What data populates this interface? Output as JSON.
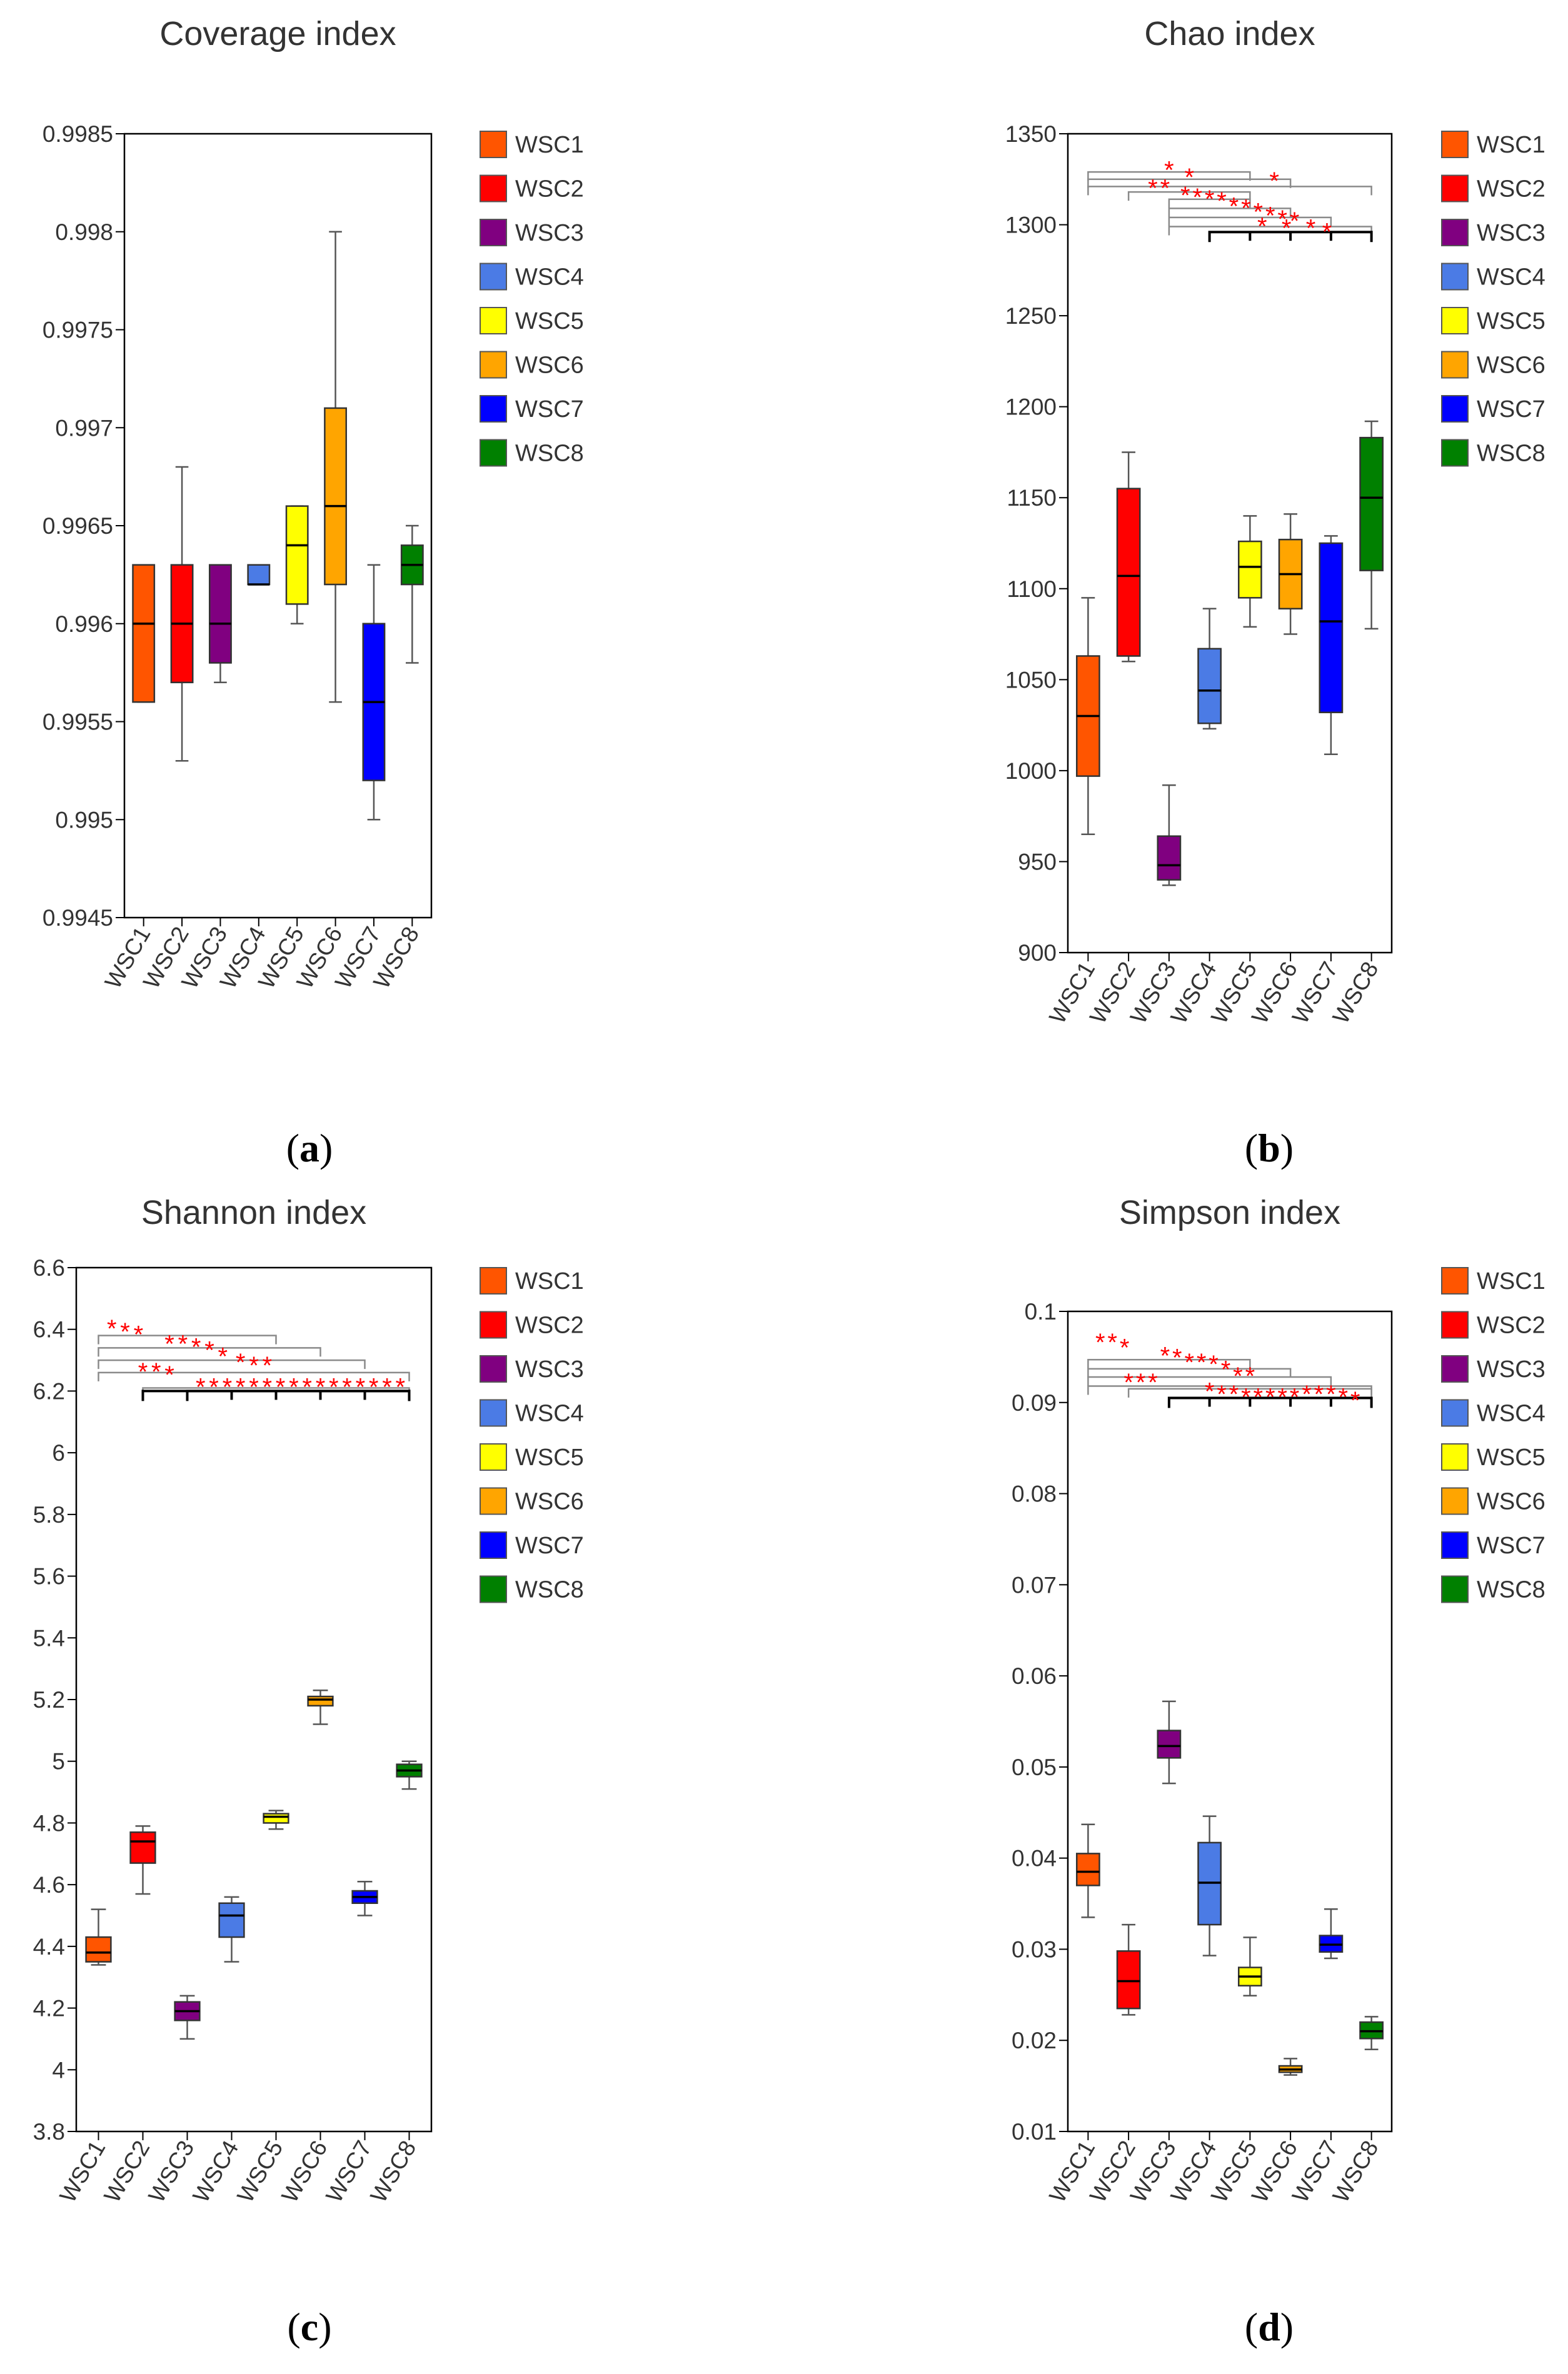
{
  "figure": {
    "panels": [
      {
        "label_prefix": "(",
        "label_letter": "a",
        "label_suffix": ")"
      },
      {
        "label_prefix": "(",
        "label_letter": "b",
        "label_suffix": ")"
      },
      {
        "label_prefix": "(",
        "label_letter": "c",
        "label_suffix": ")"
      },
      {
        "label_prefix": "(",
        "label_letter": "d",
        "label_suffix": ")"
      }
    ]
  },
  "legend": {
    "items": [
      {
        "name": "WSC1",
        "color": "#FF5500"
      },
      {
        "name": "WSC2",
        "color": "#FF0000"
      },
      {
        "name": "WSC3",
        "color": "#800080"
      },
      {
        "name": "WSC4",
        "color": "#4B7BE5"
      },
      {
        "name": "WSC5",
        "color": "#FFFF00"
      },
      {
        "name": "WSC6",
        "color": "#FFA500"
      },
      {
        "name": "WSC7",
        "color": "#0000FF"
      },
      {
        "name": "WSC8",
        "color": "#008000"
      }
    ]
  },
  "annotation_marker": "*",
  "significance_color": "#FF0000",
  "chart_data": [
    {
      "type": "boxplot",
      "title": "Coverage index",
      "xlabel": "",
      "ylabel": "",
      "ylim": [
        0.9945,
        0.9985
      ],
      "yticks": [
        "0.9945",
        "0.995",
        "0.9955",
        "0.996",
        "0.9965",
        "0.997",
        "0.9975",
        "0.998",
        "0.9985"
      ],
      "categories": [
        "WSC1",
        "WSC2",
        "WSC3",
        "WSC4",
        "WSC5",
        "WSC6",
        "WSC7",
        "WSC8"
      ],
      "boxes": [
        {
          "min": 0.9956,
          "q1": 0.9956,
          "median": 0.996,
          "q3": 0.9963,
          "max": 0.9963
        },
        {
          "min": 0.9953,
          "q1": 0.9957,
          "median": 0.996,
          "q3": 0.9963,
          "max": 0.9968
        },
        {
          "min": 0.9957,
          "q1": 0.9958,
          "median": 0.996,
          "q3": 0.9963,
          "max": 0.9963
        },
        {
          "min": 0.9962,
          "q1": 0.9962,
          "median": 0.9962,
          "q3": 0.9963,
          "max": 0.9963
        },
        {
          "min": 0.996,
          "q1": 0.9961,
          "median": 0.9964,
          "q3": 0.9966,
          "max": 0.9966
        },
        {
          "min": 0.9956,
          "q1": 0.9962,
          "median": 0.9966,
          "q3": 0.9971,
          "max": 0.998
        },
        {
          "min": 0.995,
          "q1": 0.9952,
          "median": 0.9956,
          "q3": 0.996,
          "max": 0.9963
        },
        {
          "min": 0.9958,
          "q1": 0.9962,
          "median": 0.9963,
          "q3": 0.9964,
          "max": 0.9965
        }
      ],
      "significance": {
        "gray_brackets": [],
        "black_brackets": [],
        "stars": []
      }
    },
    {
      "type": "boxplot",
      "title": "Chao index",
      "xlabel": "",
      "ylabel": "",
      "ylim": [
        900,
        1350
      ],
      "yticks": [
        "900",
        "950",
        "1000",
        "1050",
        "1100",
        "1150",
        "1200",
        "1250",
        "1300",
        "1350"
      ],
      "categories": [
        "WSC1",
        "WSC2",
        "WSC3",
        "WSC4",
        "WSC5",
        "WSC6",
        "WSC7",
        "WSC8"
      ],
      "boxes": [
        {
          "min": 965,
          "q1": 997,
          "median": 1030,
          "q3": 1063,
          "max": 1095
        },
        {
          "min": 1060,
          "q1": 1063,
          "median": 1107,
          "q3": 1155,
          "max": 1175
        },
        {
          "min": 937,
          "q1": 940,
          "median": 948,
          "q3": 964,
          "max": 992
        },
        {
          "min": 1023,
          "q1": 1026,
          "median": 1044,
          "q3": 1067,
          "max": 1089
        },
        {
          "min": 1079,
          "q1": 1095,
          "median": 1112,
          "q3": 1126,
          "max": 1140
        },
        {
          "min": 1075,
          "q1": 1089,
          "median": 1108,
          "q3": 1127,
          "max": 1141
        },
        {
          "min": 1009,
          "q1": 1032,
          "median": 1082,
          "q3": 1125,
          "max": 1129
        },
        {
          "min": 1078,
          "q1": 1110,
          "median": 1150,
          "q3": 1183,
          "max": 1192
        }
      ],
      "significance": {
        "gray_brackets": [
          {
            "from": 1,
            "to": 5,
            "y": 1329
          },
          {
            "from": 1,
            "to": 6,
            "y": 1325
          },
          {
            "from": 1,
            "to": 8,
            "y": 1321
          },
          {
            "from": 2,
            "to": 5,
            "y": 1318
          },
          {
            "from": 3,
            "to": 5,
            "y": 1314
          },
          {
            "from": 3,
            "to": 6,
            "y": 1309
          },
          {
            "from": 3,
            "to": 7,
            "y": 1304
          },
          {
            "from": 3,
            "to": 8,
            "y": 1299
          }
        ],
        "black_brackets": [
          {
            "from": 4,
            "to": 8,
            "y": 1296
          }
        ],
        "stars": [
          {
            "x": 3.0,
            "y": 1333
          },
          {
            "x": 3.5,
            "y": 1329
          },
          {
            "x": 5.6,
            "y": 1327
          },
          {
            "x": 2.6,
            "y": 1323
          },
          {
            "x": 2.9,
            "y": 1323
          },
          {
            "x": 3.4,
            "y": 1319
          },
          {
            "x": 3.7,
            "y": 1318
          },
          {
            "x": 4.0,
            "y": 1317
          },
          {
            "x": 4.3,
            "y": 1316
          },
          {
            "x": 4.6,
            "y": 1313
          },
          {
            "x": 4.9,
            "y": 1312
          },
          {
            "x": 5.2,
            "y": 1310
          },
          {
            "x": 5.5,
            "y": 1308
          },
          {
            "x": 5.8,
            "y": 1306
          },
          {
            "x": 6.1,
            "y": 1305
          },
          {
            "x": 5.3,
            "y": 1302
          },
          {
            "x": 5.9,
            "y": 1301
          },
          {
            "x": 6.5,
            "y": 1301
          },
          {
            "x": 6.9,
            "y": 1299
          }
        ]
      }
    },
    {
      "type": "boxplot",
      "title": "Shannon index",
      "xlabel": "",
      "ylabel": "",
      "ylim": [
        3.8,
        6.6
      ],
      "yticks": [
        "3.8",
        "4",
        "4.2",
        "4.4",
        "4.6",
        "4.8",
        "5",
        "5.2",
        "5.4",
        "5.6",
        "5.8",
        "6",
        "6.2",
        "6.4",
        "6.6"
      ],
      "categories": [
        "WSC1",
        "WSC2",
        "WSC3",
        "WSC4",
        "WSC5",
        "WSC6",
        "WSC7",
        "WSC8"
      ],
      "boxes": [
        {
          "min": 4.34,
          "q1": 4.35,
          "median": 4.38,
          "q3": 4.43,
          "max": 4.52
        },
        {
          "min": 4.57,
          "q1": 4.67,
          "median": 4.74,
          "q3": 4.77,
          "max": 4.79
        },
        {
          "min": 4.1,
          "q1": 4.16,
          "median": 4.19,
          "q3": 4.22,
          "max": 4.24
        },
        {
          "min": 4.35,
          "q1": 4.43,
          "median": 4.5,
          "q3": 4.54,
          "max": 4.56
        },
        {
          "min": 4.78,
          "q1": 4.8,
          "median": 4.82,
          "q3": 4.83,
          "max": 4.84
        },
        {
          "min": 5.12,
          "q1": 5.18,
          "median": 5.2,
          "q3": 5.21,
          "max": 5.23
        },
        {
          "min": 4.5,
          "q1": 4.54,
          "median": 4.56,
          "q3": 4.58,
          "max": 4.61
        },
        {
          "min": 4.91,
          "q1": 4.95,
          "median": 4.97,
          "q3": 4.99,
          "max": 5.0
        }
      ],
      "significance": {
        "gray_brackets": [
          {
            "from": 1,
            "to": 5,
            "y": 6.38
          },
          {
            "from": 1,
            "to": 6,
            "y": 6.34
          },
          {
            "from": 1,
            "to": 7,
            "y": 6.3
          },
          {
            "from": 1,
            "to": 8,
            "y": 6.26
          },
          {
            "from": 2,
            "to": 8,
            "y": 6.21
          }
        ],
        "black_brackets": [
          {
            "from": 2,
            "to": 8,
            "y": 6.2
          },
          {
            "from": 3,
            "to": 8,
            "y": 6.2
          }
        ],
        "stars": [
          {
            "x": 1.3,
            "y": 6.42
          },
          {
            "x": 1.6,
            "y": 6.41
          },
          {
            "x": 1.9,
            "y": 6.4
          },
          {
            "x": 2.6,
            "y": 6.37
          },
          {
            "x": 2.9,
            "y": 6.37
          },
          {
            "x": 3.2,
            "y": 6.36
          },
          {
            "x": 3.5,
            "y": 6.35
          },
          {
            "x": 3.8,
            "y": 6.33
          },
          {
            "x": 4.2,
            "y": 6.31
          },
          {
            "x": 4.5,
            "y": 6.3
          },
          {
            "x": 4.8,
            "y": 6.3
          },
          {
            "x": 2.0,
            "y": 6.28
          },
          {
            "x": 2.3,
            "y": 6.28
          },
          {
            "x": 2.6,
            "y": 6.27
          },
          {
            "x": 3.3,
            "y": 6.23
          },
          {
            "x": 3.6,
            "y": 6.23
          },
          {
            "x": 3.9,
            "y": 6.23
          },
          {
            "x": 4.2,
            "y": 6.23
          },
          {
            "x": 4.5,
            "y": 6.23
          },
          {
            "x": 4.8,
            "y": 6.23
          },
          {
            "x": 5.1,
            "y": 6.23
          },
          {
            "x": 5.4,
            "y": 6.23
          },
          {
            "x": 5.7,
            "y": 6.23
          },
          {
            "x": 6.0,
            "y": 6.23
          },
          {
            "x": 6.3,
            "y": 6.23
          },
          {
            "x": 6.6,
            "y": 6.23
          },
          {
            "x": 6.9,
            "y": 6.23
          },
          {
            "x": 7.2,
            "y": 6.23
          },
          {
            "x": 7.5,
            "y": 6.23
          },
          {
            "x": 7.8,
            "y": 6.23
          }
        ]
      }
    },
    {
      "type": "boxplot",
      "title": "Simpson index",
      "xlabel": "",
      "ylabel": "",
      "ylim": [
        0.01,
        0.1
      ],
      "yticks": [
        "0.01",
        "0.02",
        "0.03",
        "0.04",
        "0.05",
        "0.06",
        "0.07",
        "0.08",
        "0.09",
        "0.1"
      ],
      "categories": [
        "WSC1",
        "WSC2",
        "WSC3",
        "WSC4",
        "WSC5",
        "WSC6",
        "WSC7",
        "WSC8"
      ],
      "boxes": [
        {
          "min": 0.0335,
          "q1": 0.037,
          "median": 0.0385,
          "q3": 0.0405,
          "max": 0.0437
        },
        {
          "min": 0.0228,
          "q1": 0.0235,
          "median": 0.0265,
          "q3": 0.0298,
          "max": 0.0327
        },
        {
          "min": 0.0482,
          "q1": 0.051,
          "median": 0.0523,
          "q3": 0.054,
          "max": 0.0572
        },
        {
          "min": 0.0293,
          "q1": 0.0327,
          "median": 0.0373,
          "q3": 0.0417,
          "max": 0.0446
        },
        {
          "min": 0.0249,
          "q1": 0.026,
          "median": 0.027,
          "q3": 0.028,
          "max": 0.0313
        },
        {
          "min": 0.0162,
          "q1": 0.0165,
          "median": 0.0168,
          "q3": 0.0172,
          "max": 0.018
        },
        {
          "min": 0.029,
          "q1": 0.0297,
          "median": 0.0305,
          "q3": 0.0315,
          "max": 0.0344
        },
        {
          "min": 0.019,
          "q1": 0.0202,
          "median": 0.021,
          "q3": 0.022,
          "max": 0.0226
        }
      ],
      "significance": {
        "gray_brackets": [
          {
            "from": 1,
            "to": 5,
            "y": 0.0947
          },
          {
            "from": 1,
            "to": 6,
            "y": 0.0937
          },
          {
            "from": 1,
            "to": 7,
            "y": 0.0928
          },
          {
            "from": 1,
            "to": 8,
            "y": 0.0918
          },
          {
            "from": 2,
            "to": 8,
            "y": 0.0915
          }
        ],
        "black_brackets": [
          {
            "from": 3,
            "to": 8,
            "y": 0.0905
          }
        ],
        "stars": [
          {
            "x": 1.3,
            "y": 0.0972
          },
          {
            "x": 1.6,
            "y": 0.0972
          },
          {
            "x": 1.9,
            "y": 0.0966
          },
          {
            "x": 2.9,
            "y": 0.0957
          },
          {
            "x": 3.2,
            "y": 0.0955
          },
          {
            "x": 3.5,
            "y": 0.095
          },
          {
            "x": 3.8,
            "y": 0.095
          },
          {
            "x": 4.1,
            "y": 0.0948
          },
          {
            "x": 4.4,
            "y": 0.0942
          },
          {
            "x": 4.7,
            "y": 0.0935
          },
          {
            "x": 5.0,
            "y": 0.0935
          },
          {
            "x": 2.0,
            "y": 0.0928
          },
          {
            "x": 2.3,
            "y": 0.0928
          },
          {
            "x": 2.6,
            "y": 0.0928
          },
          {
            "x": 4.0,
            "y": 0.0918
          },
          {
            "x": 4.3,
            "y": 0.0915
          },
          {
            "x": 4.6,
            "y": 0.0915
          },
          {
            "x": 4.9,
            "y": 0.0912
          },
          {
            "x": 5.2,
            "y": 0.0912
          },
          {
            "x": 5.5,
            "y": 0.0912
          },
          {
            "x": 5.8,
            "y": 0.0912
          },
          {
            "x": 6.1,
            "y": 0.0912
          },
          {
            "x": 6.4,
            "y": 0.0915
          },
          {
            "x": 6.7,
            "y": 0.0915
          },
          {
            "x": 7.0,
            "y": 0.0915
          },
          {
            "x": 7.3,
            "y": 0.0912
          },
          {
            "x": 7.6,
            "y": 0.0908
          }
        ]
      }
    }
  ]
}
